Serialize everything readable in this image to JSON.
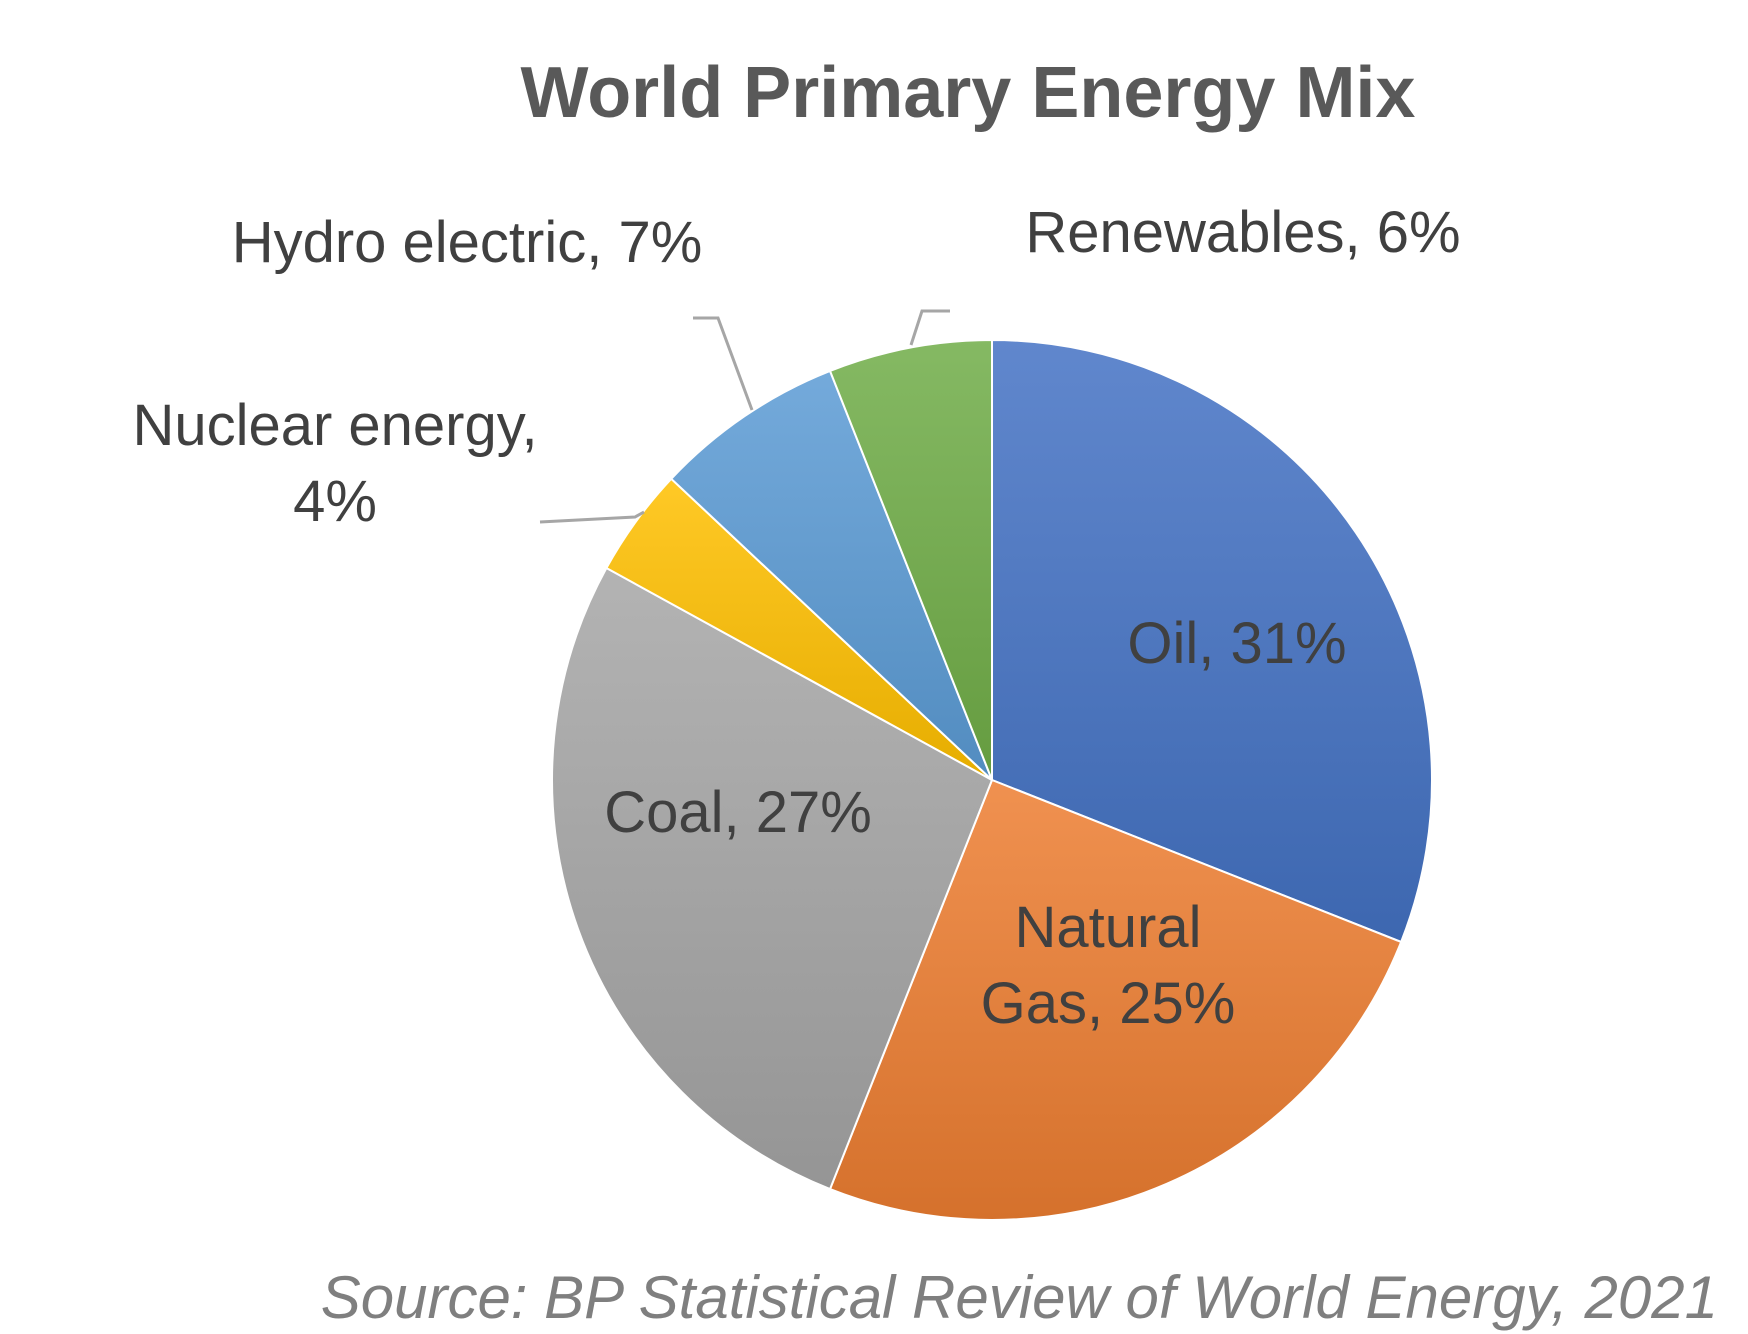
{
  "chart_data": {
    "type": "pie",
    "title": "World Primary Energy Mix",
    "start_angle_deg": 0,
    "direction": "clockwise",
    "slices": [
      {
        "label": "Oil",
        "value": 31,
        "display": "Oil, 31%",
        "color": "#4472c4",
        "label_lines": [
          "Oil, 31%"
        ]
      },
      {
        "label": "Natural Gas",
        "value": 25,
        "display": "Natural Gas, 25%",
        "color": "#ed7d31",
        "label_lines": [
          "Natural",
          "Gas, 25%"
        ]
      },
      {
        "label": "Coal",
        "value": 27,
        "display": "Coal, 27%",
        "color": "#a5a5a5",
        "label_lines": [
          "Coal, 27%"
        ]
      },
      {
        "label": "Nuclear energy",
        "value": 4,
        "display": "Nuclear energy, 4%",
        "color": "#ffc000",
        "label_lines": [
          "Nuclear energy,",
          "4%"
        ]
      },
      {
        "label": "Hydro electric",
        "value": 7,
        "display": "Hydro electric, 7%",
        "color": "#5b9bd5",
        "label_lines": [
          "Hydro electric, 7%"
        ]
      },
      {
        "label": "Renewables",
        "value": 6,
        "display": "Renewables, 6%",
        "color": "#70ad47",
        "label_lines": [
          "Renewables, 6%"
        ]
      }
    ],
    "source": "Source: BP Statistical Review of World Energy, 2021"
  }
}
